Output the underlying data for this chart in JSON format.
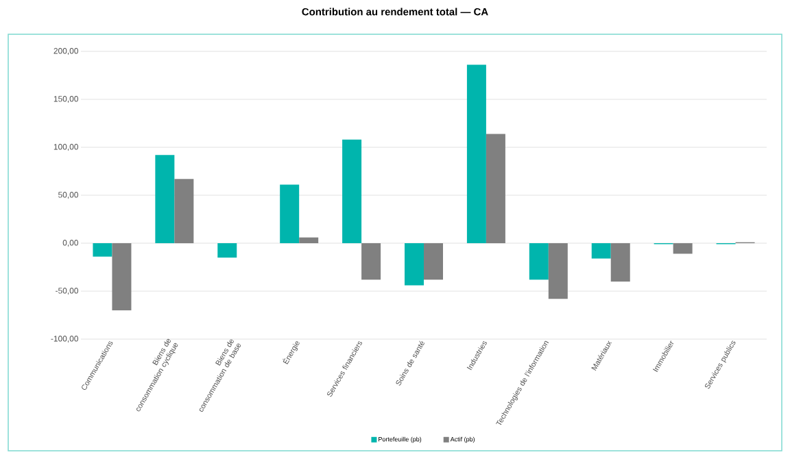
{
  "chart_data": {
    "type": "bar",
    "title": "Contribution au rendement total — CA",
    "categories": [
      "Communications",
      "Biens de consommation cyclique",
      "Biens de consommation de base",
      "Énergie",
      "Services financiers",
      "Soins de santé",
      "Industries",
      "Technologies de l'information",
      "Matériaux",
      "Immobilier",
      "Services publics"
    ],
    "series": [
      {
        "name": "Portefeuille (pb)",
        "color": "#00b5ad",
        "values": [
          -14,
          92,
          -15,
          61,
          108,
          -44,
          186,
          -38,
          -16,
          -1,
          -1
        ]
      },
      {
        "name": "Actif (pb)",
        "color": "#808080",
        "values": [
          -70,
          67,
          0,
          6,
          -38,
          -38,
          114,
          -58,
          -40,
          -11,
          1
        ]
      }
    ],
    "ylim": [
      -100,
      200
    ],
    "yticks": [
      {
        "value": -100,
        "label": "-100,00"
      },
      {
        "value": -50,
        "label": "-50,00"
      },
      {
        "value": 0,
        "label": "0,00"
      },
      {
        "value": 50,
        "label": "50,00"
      },
      {
        "value": 100,
        "label": "100,00"
      },
      {
        "value": 150,
        "label": "150,00"
      },
      {
        "value": 200,
        "label": "200,00"
      }
    ],
    "grid": "y",
    "legend": "bottom"
  }
}
